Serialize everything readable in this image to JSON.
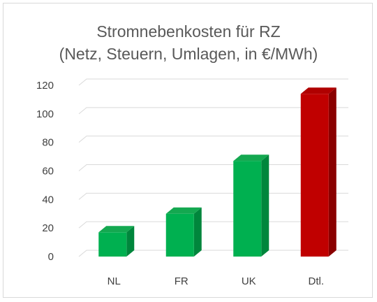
{
  "chart_data": {
    "type": "bar",
    "title_lines": [
      "Stromnebenkosten für RZ",
      "(Netz, Steuern, Umlagen, in €/MWh)"
    ],
    "categories": [
      "NL",
      "FR",
      "UK",
      "Dtl."
    ],
    "values": [
      17,
      30,
      67,
      114
    ],
    "ylim": [
      0,
      120
    ],
    "yticks": [
      "0",
      "20",
      "40",
      "60",
      "80",
      "100",
      "120"
    ],
    "grid": true,
    "legend": "none",
    "bar_colors": {
      "default": {
        "front": "#00b050",
        "side": "#00863c",
        "top": "#14a850"
      },
      "highlight": {
        "front": "#c00000",
        "side": "#8a0000",
        "top": "#b00000"
      }
    },
    "highlight_category": "Dtl."
  }
}
